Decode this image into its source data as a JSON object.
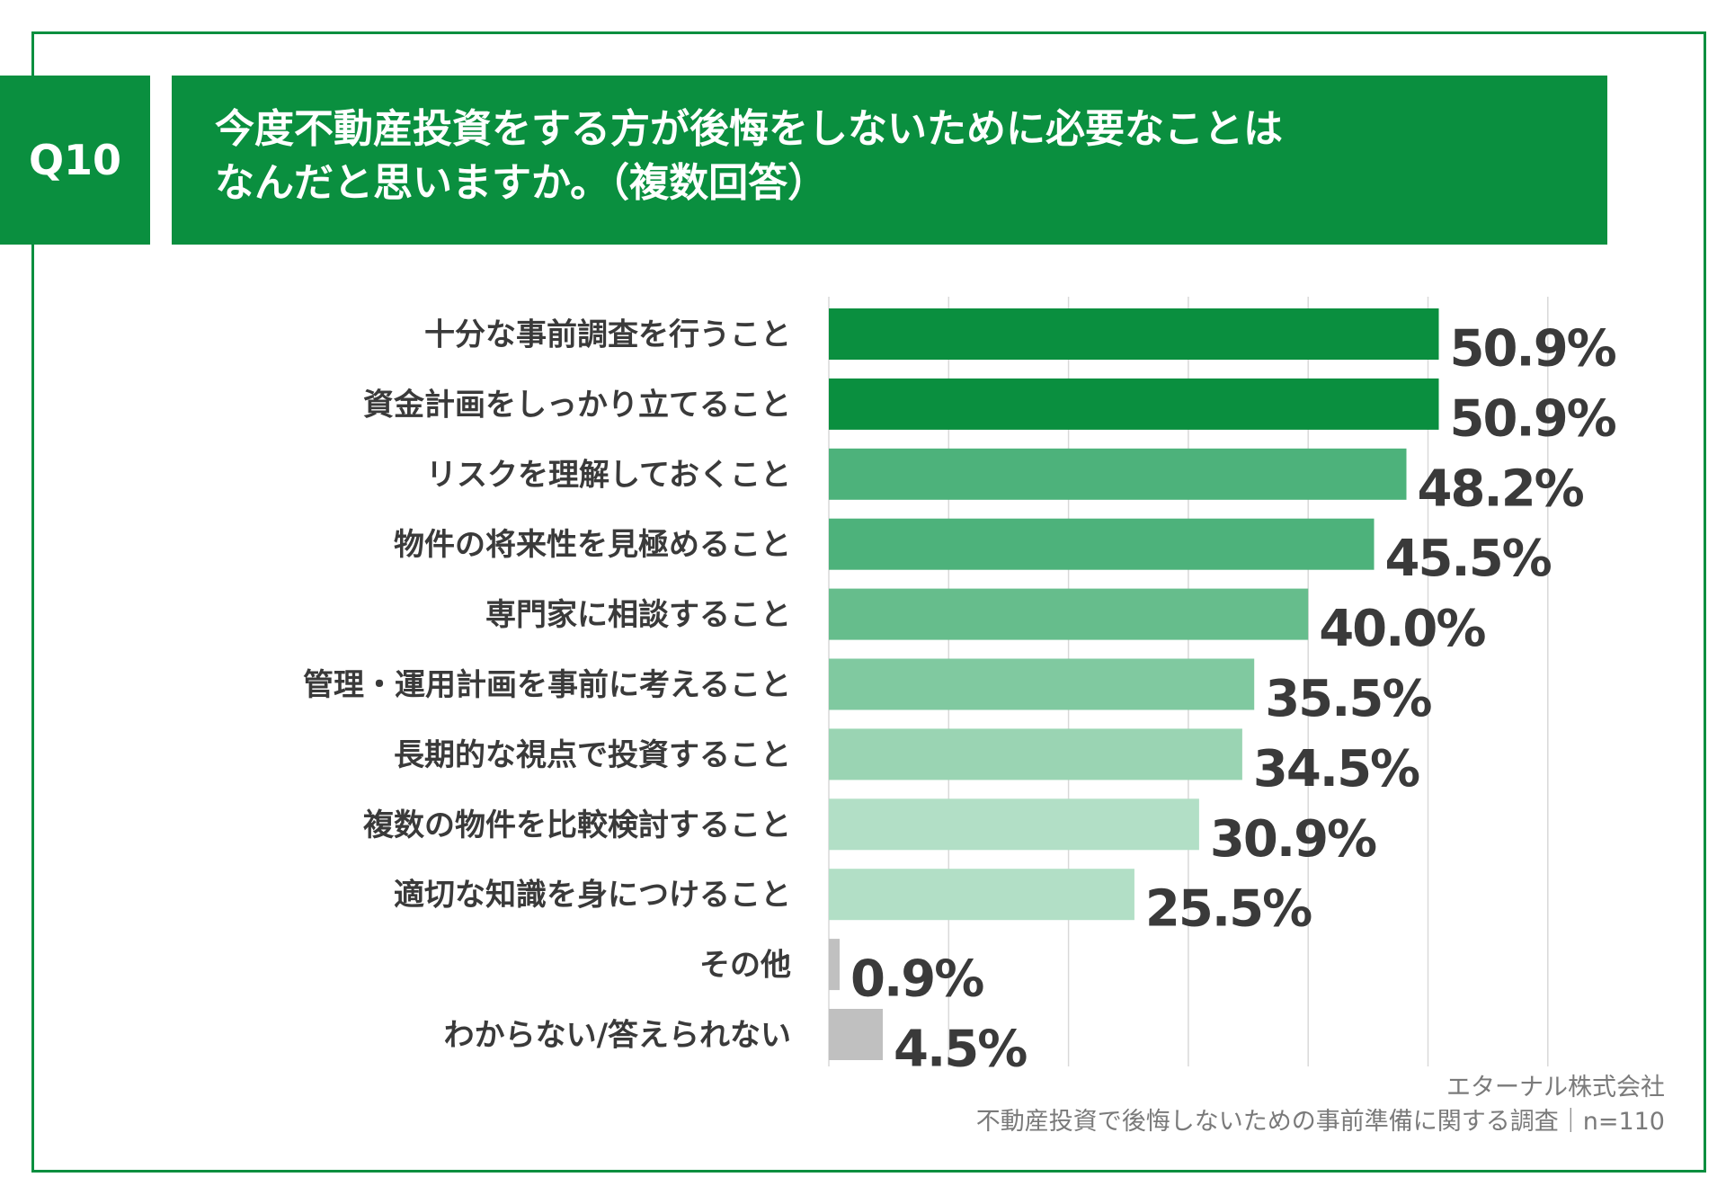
{
  "header": {
    "badge": "Q10",
    "title_line1": "今度不動産投資をする方が後悔をしないために必要なことは",
    "title_line2": "なんだと思いますか。（複数回答）"
  },
  "chart_data": {
    "type": "bar",
    "orientation": "horizontal",
    "categories": [
      "十分な事前調査を行うこと",
      "資金計画をしっかり立てること",
      "リスクを理解しておくこと",
      "物件の将来性を見極めること",
      "専門家に相談すること",
      "管理・運用計画を事前に考えること",
      "長期的な視点で投資すること",
      "複数の物件を比較検討すること",
      "適切な知識を身につけること",
      "その他",
      "わからない/答えられない"
    ],
    "values": [
      50.9,
      50.9,
      48.2,
      45.5,
      40.0,
      35.5,
      34.5,
      30.9,
      25.5,
      0.9,
      4.5
    ],
    "value_labels": [
      "50.9%",
      "50.9%",
      "48.2%",
      "45.5%",
      "40.0%",
      "35.5%",
      "34.5%",
      "30.9%",
      "25.5%",
      "0.9%",
      "4.5%"
    ],
    "bar_colors": [
      "#0a8f3f",
      "#0a8f3f",
      "#4db27b",
      "#4db27b",
      "#66bd8c",
      "#80c9a0",
      "#9ad4b3",
      "#b2dfc6",
      "#b2dfc6",
      "#c0c0c0",
      "#c0c0c0"
    ],
    "xlim": [
      0,
      60
    ],
    "grid": true,
    "title": "",
    "xlabel": "",
    "ylabel": ""
  },
  "footer": {
    "company": "エターナル株式会社",
    "survey": "不動産投資で後悔しないための事前準備に関する調査｜n=110"
  }
}
